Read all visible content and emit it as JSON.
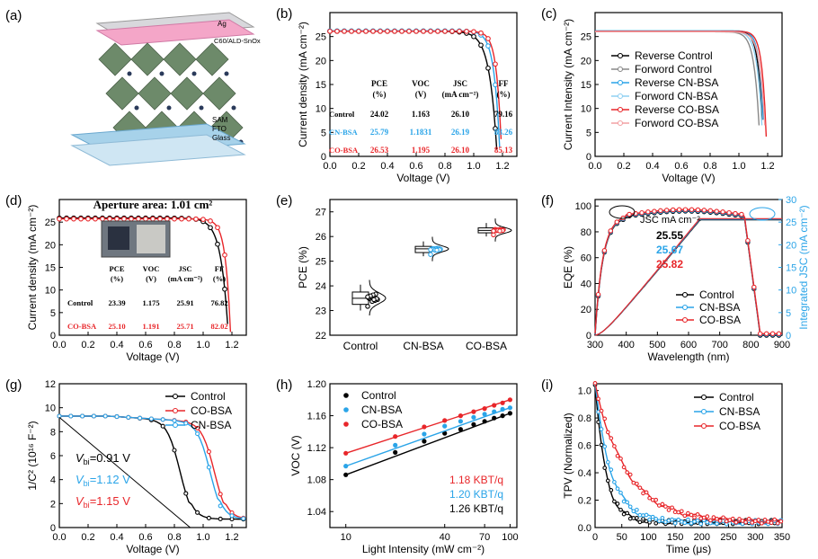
{
  "colors": {
    "control": "#000000",
    "cn": "#2aa4e8",
    "co": "#e8262a",
    "gray": "#888888",
    "lightcn": "#8fd0f2",
    "lightco": "#f2a0a3"
  },
  "panels": {
    "a": {
      "label": "(a)",
      "layers": [
        "Ag",
        "C60/ALD-SnOx",
        "SAM",
        "FTO",
        "Glass"
      ]
    },
    "b": {
      "label": "(b)",
      "xlabel": "Voltage (V)",
      "ylabel": "Current density (mA cm⁻²)",
      "xticks": [
        "0.0",
        "0.2",
        "0.4",
        "0.6",
        "0.8",
        "1.0",
        "1.2"
      ],
      "yticks": [
        "0",
        "5",
        "10",
        "15",
        "20",
        "25"
      ],
      "table": {
        "headers": [
          "PCE\n(%)",
          "VOC\n(V)",
          "JSC\n(mA cm⁻²)",
          "FF\n(%)"
        ],
        "rows": [
          {
            "name": "Control",
            "vals": [
              "24.02",
              "1.163",
              "26.10",
              "79.16"
            ],
            "color": "#000000"
          },
          {
            "name": "CN-BSA",
            "vals": [
              "25.79",
              "1.1831",
              "26.19",
              "83.26"
            ],
            "color": "#2aa4e8"
          },
          {
            "name": "CO-BSA",
            "vals": [
              "26.53",
              "1.195",
              "26.10",
              "85.13"
            ],
            "color": "#e8262a"
          }
        ]
      }
    },
    "c": {
      "label": "(c)",
      "xlabel": "Voltage (V)",
      "ylabel": "Current Intensity (mA cm⁻²)",
      "xticks": [
        "0.0",
        "0.2",
        "0.4",
        "0.6",
        "0.8",
        "1.0",
        "1.2"
      ],
      "yticks": [
        "0",
        "5",
        "10",
        "15",
        "20",
        "25"
      ],
      "legend": [
        "Reverse Control",
        "Forword Control",
        "Reverse CN-BSA",
        "Forword CN-BSA",
        "Reverse CO-BSA",
        "Forword CO-BSA"
      ]
    },
    "d": {
      "label": "(d)",
      "title": "Aperture area: 1.01 cm²",
      "xlabel": "Voltage (V)",
      "ylabel": "Current density (mA cm⁻²)",
      "xticks": [
        "0.0",
        "0.2",
        "0.4",
        "0.6",
        "0.8",
        "1.0",
        "1.2"
      ],
      "yticks": [
        "0",
        "5",
        "10",
        "15",
        "20",
        "25"
      ],
      "table": {
        "headers": [
          "PCE\n(%)",
          "VOC\n(V)",
          "JSC\n(mA cm⁻²)",
          "FF\n(%)"
        ],
        "rows": [
          {
            "name": "Control",
            "vals": [
              "23.39",
              "1.175",
              "25.91",
              "76.82"
            ],
            "color": "#000000"
          },
          {
            "name": "CO-BSA",
            "vals": [
              "25.10",
              "1.191",
              "25.71",
              "82.02"
            ],
            "color": "#e8262a"
          }
        ]
      }
    },
    "e": {
      "label": "(e)",
      "ylabel": "PCE (%)",
      "categories": [
        "Control",
        "CN-BSA",
        "CO-BSA"
      ],
      "yticks": [
        "22",
        "23",
        "24",
        "25",
        "26",
        "27"
      ]
    },
    "f": {
      "label": "(f)",
      "xlabel": "Wavelength (nm)",
      "ylabel": "EQE (%)",
      "ylabel2": "Integrated JSC (mA cm⁻²)",
      "xticks": [
        "300",
        "400",
        "500",
        "600",
        "700",
        "800",
        "900"
      ],
      "yticks": [
        "0",
        "20",
        "40",
        "60",
        "80",
        "100"
      ],
      "yticks2": [
        "0",
        "5",
        "10",
        "15",
        "20",
        "25",
        "30"
      ],
      "jsc_title": "JSC mA cm⁻²",
      "jsc_values": [
        {
          "v": "25.55",
          "color": "#000000"
        },
        {
          "v": "25.67",
          "color": "#2aa4e8"
        },
        {
          "v": "25.82",
          "color": "#e8262a"
        }
      ],
      "legend": [
        "Control",
        "CN-BSA",
        "CO-BSA"
      ]
    },
    "g": {
      "label": "(g)",
      "xlabel": "Voltage (V)",
      "ylabel": "1/C² (10¹⁶ F⁻²)",
      "xticks": [
        "0.0",
        "0.2",
        "0.4",
        "0.6",
        "0.8",
        "1.0",
        "1.2"
      ],
      "yticks": [
        "0",
        "2",
        "4",
        "6",
        "8",
        "10",
        "12"
      ],
      "legend": [
        "Control",
        "CO-BSA",
        "CN-BSA"
      ],
      "vbi": [
        {
          "t": "=0.91 V",
          "color": "#000000"
        },
        {
          "t": "=1.12 V",
          "color": "#2aa4e8"
        },
        {
          "t": "=1.15 V",
          "color": "#e8262a"
        }
      ]
    },
    "h": {
      "label": "(h)",
      "xlabel": "Light Intensity (mW cm⁻²)",
      "ylabel": "VOC (V)",
      "xticks": [
        "10",
        "40",
        "70",
        "100"
      ],
      "yticks": [
        "1.04",
        "1.08",
        "1.12",
        "1.16",
        "1.20"
      ],
      "legend": [
        "Control",
        "CN-BSA",
        "CO-BSA"
      ],
      "slopes": [
        {
          "t": "1.18 KBT/q",
          "color": "#e8262a"
        },
        {
          "t": "1.20 KBT/q",
          "color": "#2aa4e8"
        },
        {
          "t": "1.26 KBT/q",
          "color": "#000000"
        }
      ]
    },
    "i": {
      "label": "(i)",
      "xlabel": "Time (μs)",
      "ylabel": "TPV (Normalized)",
      "xticks": [
        "0",
        "50",
        "100",
        "150",
        "200",
        "250",
        "300",
        "350"
      ],
      "yticks": [
        "0.0",
        "0.2",
        "0.4",
        "0.6",
        "0.8",
        "1.0"
      ],
      "legend": [
        "Control",
        "CN-BSA",
        "CO-BSA"
      ]
    }
  },
  "chart_data": [
    {
      "panel": "b",
      "type": "line",
      "xlabel": "Voltage (V)",
      "ylabel": "Current density (mA cm⁻²)",
      "xlim": [
        0,
        1.3
      ],
      "ylim": [
        0,
        30
      ],
      "series": [
        {
          "name": "Control",
          "voc": 1.163,
          "jsc": 26.1,
          "ff": 79.16
        },
        {
          "name": "CN-BSA",
          "voc": 1.1831,
          "jsc": 26.19,
          "ff": 83.26
        },
        {
          "name": "CO-BSA",
          "voc": 1.195,
          "jsc": 26.1,
          "ff": 85.13
        }
      ]
    },
    {
      "panel": "c",
      "type": "line",
      "xlabel": "Voltage (V)",
      "ylabel": "Current Intensity (mA cm⁻²)",
      "xlim": [
        0,
        1.3
      ],
      "ylim": [
        0,
        30
      ],
      "series": [
        {
          "name": "Reverse Control",
          "voc": 1.17,
          "jsc": 26.1
        },
        {
          "name": "Forword Control",
          "voc": 1.15,
          "jsc": 26.0
        },
        {
          "name": "Reverse CN-BSA",
          "voc": 1.18,
          "jsc": 26.2
        },
        {
          "name": "Forword CN-BSA",
          "voc": 1.17,
          "jsc": 26.1
        },
        {
          "name": "Reverse CO-BSA",
          "voc": 1.195,
          "jsc": 26.1
        },
        {
          "name": "Forword CO-BSA",
          "voc": 1.19,
          "jsc": 26.0
        }
      ]
    },
    {
      "panel": "d",
      "type": "line",
      "xlabel": "Voltage (V)",
      "ylabel": "Current density (mA cm⁻²)",
      "xlim": [
        0,
        1.3
      ],
      "ylim": [
        0,
        30
      ],
      "series": [
        {
          "name": "Control",
          "voc": 1.175,
          "jsc": 25.91,
          "ff": 76.82
        },
        {
          "name": "CO-BSA",
          "voc": 1.191,
          "jsc": 25.71,
          "ff": 82.02
        }
      ]
    },
    {
      "panel": "e",
      "type": "box",
      "ylabel": "PCE (%)",
      "ylim": [
        22,
        27.5
      ],
      "categories": [
        "Control",
        "CN-BSA",
        "CO-BSA"
      ],
      "boxes": [
        {
          "min": 23.0,
          "q1": 23.25,
          "median": 23.5,
          "q3": 23.75,
          "max": 24.05
        },
        {
          "min": 25.2,
          "q1": 25.35,
          "median": 25.5,
          "q3": 25.6,
          "max": 25.8
        },
        {
          "min": 26.0,
          "q1": 26.15,
          "median": 26.25,
          "q3": 26.35,
          "max": 26.55
        }
      ]
    },
    {
      "panel": "f",
      "type": "line",
      "xlabel": "Wavelength (nm)",
      "ylabel": "EQE (%)",
      "xlim": [
        300,
        900
      ],
      "ylim": [
        0,
        105
      ],
      "ylim2": [
        0,
        30
      ],
      "series": [
        {
          "name": "Control",
          "integrated_jsc": 25.55
        },
        {
          "name": "CN-BSA",
          "integrated_jsc": 25.67
        },
        {
          "name": "CO-BSA",
          "integrated_jsc": 25.82
        }
      ]
    },
    {
      "panel": "g",
      "type": "line",
      "xlabel": "Voltage (V)",
      "ylabel": "1/C² (10¹⁶ F⁻²)",
      "xlim": [
        0,
        1.3
      ],
      "ylim": [
        0,
        12
      ],
      "series": [
        {
          "name": "Control",
          "vbi": 0.91
        },
        {
          "name": "CO-BSA",
          "vbi": 1.15
        },
        {
          "name": "CN-BSA",
          "vbi": 1.12
        }
      ]
    },
    {
      "panel": "h",
      "type": "scatter",
      "xlabel": "Light Intensity (mW cm⁻²)",
      "ylabel": "VOC (V)",
      "xscale": "log",
      "xlim": [
        8,
        110
      ],
      "ylim": [
        1.02,
        1.2
      ],
      "x": [
        10,
        20,
        30,
        40,
        50,
        60,
        70,
        80,
        90,
        100
      ],
      "series": [
        {
          "name": "Control",
          "values": [
            1.086,
            1.114,
            1.128,
            1.138,
            1.143,
            1.149,
            1.153,
            1.157,
            1.16,
            1.163
          ]
        },
        {
          "name": "CN-BSA",
          "values": [
            1.097,
            1.123,
            1.137,
            1.147,
            1.153,
            1.158,
            1.162,
            1.165,
            1.168,
            1.17
          ]
        },
        {
          "name": "CO-BSA",
          "values": [
            1.113,
            1.134,
            1.146,
            1.154,
            1.16,
            1.165,
            1.169,
            1.173,
            1.176,
            1.18
          ]
        }
      ]
    },
    {
      "panel": "i",
      "type": "line",
      "xlabel": "Time (μs)",
      "ylabel": "TPV (Normalized)",
      "xlim": [
        0,
        350
      ],
      "ylim": [
        0,
        1.05
      ],
      "series": [
        {
          "name": "Control",
          "tau_us": 20
        },
        {
          "name": "CN-BSA",
          "tau_us": 30
        },
        {
          "name": "CO-BSA",
          "tau_us": 60
        }
      ]
    }
  ]
}
